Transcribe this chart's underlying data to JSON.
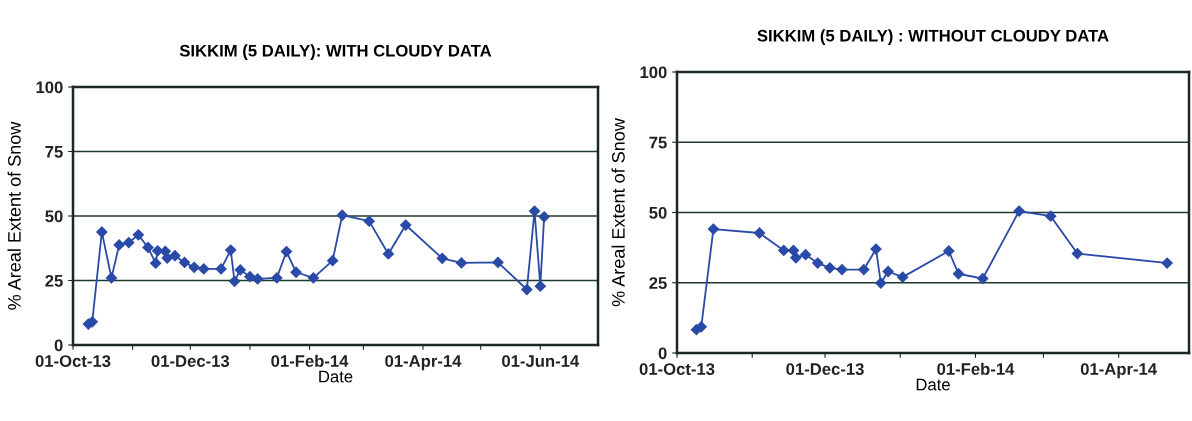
{
  "chart_data": [
    {
      "type": "line",
      "title": "SIKKIM (5 DAILY): WITH CLOUDY DATA",
      "xlabel": "Date",
      "ylabel": "% Areal Extent of Snow",
      "marker": "diamond",
      "line_style": "solid",
      "grid": "y",
      "x": [
        "2013-10-09",
        "2013-10-11",
        "2013-10-16",
        "2013-10-21",
        "2013-10-25",
        "2013-10-30",
        "2013-11-04",
        "2013-11-09",
        "2013-11-13",
        "2013-11-14",
        "2013-11-18",
        "2013-11-19",
        "2013-11-23",
        "2013-11-28",
        "2013-12-03",
        "2013-12-08",
        "2013-12-17",
        "2013-12-22",
        "2013-12-24",
        "2013-12-27",
        "2014-01-01",
        "2014-01-05",
        "2014-01-15",
        "2014-01-20",
        "2014-01-25",
        "2014-02-03",
        "2014-02-13",
        "2014-02-18",
        "2014-03-04",
        "2014-03-14",
        "2014-03-23",
        "2014-04-11",
        "2014-04-21",
        "2014-05-10",
        "2014-05-25",
        "2014-05-29",
        "2014-06-01",
        "2014-06-03"
      ],
      "series": [
        {
          "color": "#2a4aa8",
          "values": [
            8.1,
            9.0,
            43.8,
            26,
            38.8,
            39.7,
            42.7,
            37.8,
            31.7,
            36.5,
            36.3,
            33.7,
            34.6,
            32,
            30.1,
            29.5,
            29.5,
            36.8,
            24.7,
            29.1,
            26.5,
            25.6,
            26,
            36.2,
            28.2,
            26,
            32.7,
            50.3,
            48,
            35.3,
            46.5,
            33.6,
            31.8,
            32,
            21.5,
            51.9,
            22.8,
            49.7
          ]
        }
      ],
      "xlim": [
        "2013-10-01",
        "2014-07-01"
      ],
      "xticks": [
        {
          "value": "2013-10-01",
          "label": "01-Oct-13"
        },
        {
          "value": "2013-11-01",
          "label": null
        },
        {
          "value": "2013-12-01",
          "label": "01-Dec-13"
        },
        {
          "value": "2014-01-01",
          "label": null
        },
        {
          "value": "2014-02-01",
          "label": "01-Feb-14"
        },
        {
          "value": "2014-03-01",
          "label": null
        },
        {
          "value": "2014-04-01",
          "label": "01-Apr-14"
        },
        {
          "value": "2014-05-01",
          "label": null
        },
        {
          "value": "2014-06-01",
          "label": "01-Jun-14"
        }
      ],
      "ylim": [
        0,
        100
      ],
      "yticks": [
        0,
        25,
        50,
        75,
        100
      ]
    },
    {
      "type": "line",
      "title": "SIKKIM (5 DAILY) : WITHOUT CLOUDY DATA",
      "xlabel": "Date",
      "ylabel": "% Areal Extent of Snow",
      "marker": "diamond",
      "line_style": "solid",
      "grid": "y",
      "x": [
        "2013-10-09",
        "2013-10-11",
        "2013-10-16",
        "2013-11-04",
        "2013-11-14",
        "2013-11-18",
        "2013-11-19",
        "2013-11-23",
        "2013-11-28",
        "2013-12-03",
        "2013-12-08",
        "2013-12-17",
        "2013-12-22",
        "2013-12-24",
        "2013-12-27",
        "2014-01-02",
        "2014-01-21",
        "2014-01-25",
        "2014-02-04",
        "2014-02-19",
        "2014-03-04",
        "2014-03-15",
        "2014-04-21"
      ],
      "series": [
        {
          "color": "#2a4aa8",
          "values": [
            8.3,
            9.3,
            44.1,
            42.7,
            36.5,
            36.5,
            33.9,
            35,
            32,
            30.3,
            29.7,
            29.7,
            37,
            24.9,
            29,
            27,
            36.3,
            28.2,
            26.5,
            50.5,
            48.7,
            35.4,
            32
          ]
        }
      ],
      "xlim": [
        "2013-10-01",
        "2014-04-30"
      ],
      "xticks": [
        {
          "value": "2013-10-01",
          "label": "01-Oct-13"
        },
        {
          "value": "2013-11-01",
          "label": null
        },
        {
          "value": "2013-12-01",
          "label": "01-Dec-13"
        },
        {
          "value": "2014-01-01",
          "label": null
        },
        {
          "value": "2014-02-01",
          "label": "01-Feb-14"
        },
        {
          "value": "2014-03-01",
          "label": null
        },
        {
          "value": "2014-04-01",
          "label": "01-Apr-14"
        }
      ],
      "ylim": [
        0,
        100
      ],
      "yticks": [
        0,
        25,
        50,
        75,
        100
      ]
    }
  ]
}
